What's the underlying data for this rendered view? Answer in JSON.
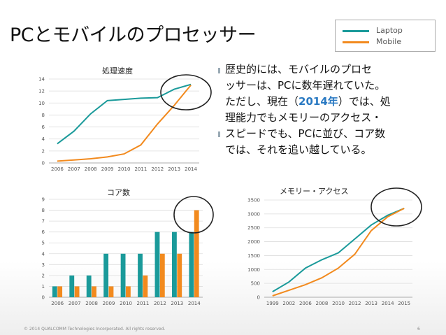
{
  "title": "PCとモバイルのプロセッサー",
  "legend": [
    {
      "label": "Laptop",
      "color": "#1a9a9a"
    },
    {
      "label": "Mobile",
      "color": "#f28a1e"
    }
  ],
  "colors": {
    "laptop": "#1a9a9a",
    "mobile": "#f28a1e",
    "grid": "#dddddd"
  },
  "text_block": {
    "line1": "歴史的には、モバイルのプロセ",
    "line2": "ッサーは、PCに数年遅れていた。",
    "line3_pre": "ただし、現在（",
    "line3_hl": "2014年",
    "line3_post": "）では、処",
    "line4": "理能力でもメモリーのアクセス・",
    "line5": "スピードでも、PCに並び、コア数",
    "line6": "では、それを追い越している。"
  },
  "footer": "© 2014 QUALCOMM Technologies Incorporated. All rights reserved.",
  "page_number": "6",
  "chart_data": [
    {
      "type": "line",
      "title": "処理速度",
      "x": [
        "2006",
        "2007",
        "2008",
        "2009",
        "2010",
        "2011",
        "2012",
        "2013",
        "2014"
      ],
      "ylim": [
        0,
        14
      ],
      "yticks": [
        0,
        2,
        4,
        6,
        8,
        10,
        12,
        14
      ],
      "grid": true,
      "series": [
        {
          "name": "Laptop",
          "values": [
            3.2,
            5.3,
            8.2,
            10.4,
            10.6,
            10.8,
            10.9,
            12.3,
            13.1
          ]
        },
        {
          "name": "Mobile",
          "values": [
            0.3,
            0.5,
            0.7,
            1.0,
            1.5,
            3.0,
            6.5,
            9.6,
            13.0
          ]
        }
      ]
    },
    {
      "type": "bar",
      "title": "コア数",
      "categories": [
        "2006",
        "2007",
        "2008",
        "2009",
        "2010",
        "2011",
        "2012",
        "2013",
        "2014"
      ],
      "ylim": [
        0,
        9
      ],
      "yticks": [
        0,
        1,
        2,
        3,
        4,
        5,
        6,
        7,
        8,
        9
      ],
      "grid": true,
      "series": [
        {
          "name": "Laptop",
          "values": [
            1,
            2,
            2,
            4,
            4,
            4,
            6,
            6,
            6
          ]
        },
        {
          "name": "Mobile",
          "values": [
            1,
            1,
            1,
            1,
            1,
            2,
            4,
            4,
            8
          ]
        }
      ]
    },
    {
      "type": "line",
      "title": "メモリー・アクセス",
      "x": [
        "1999",
        "2002",
        "2006",
        "2008",
        "2010",
        "2012",
        "2013",
        "2014",
        "2015"
      ],
      "ylim": [
        0,
        3500
      ],
      "yticks": [
        0,
        500,
        1000,
        1500,
        2000,
        2500,
        3000,
        3500
      ],
      "grid": true,
      "series": [
        {
          "name": "Laptop",
          "values": [
            200,
            550,
            1050,
            1350,
            1600,
            2100,
            2600,
            2950,
            3200
          ]
        },
        {
          "name": "Mobile",
          "values": [
            50,
            250,
            450,
            700,
            1050,
            1550,
            2400,
            2900,
            3200
          ]
        }
      ]
    }
  ]
}
